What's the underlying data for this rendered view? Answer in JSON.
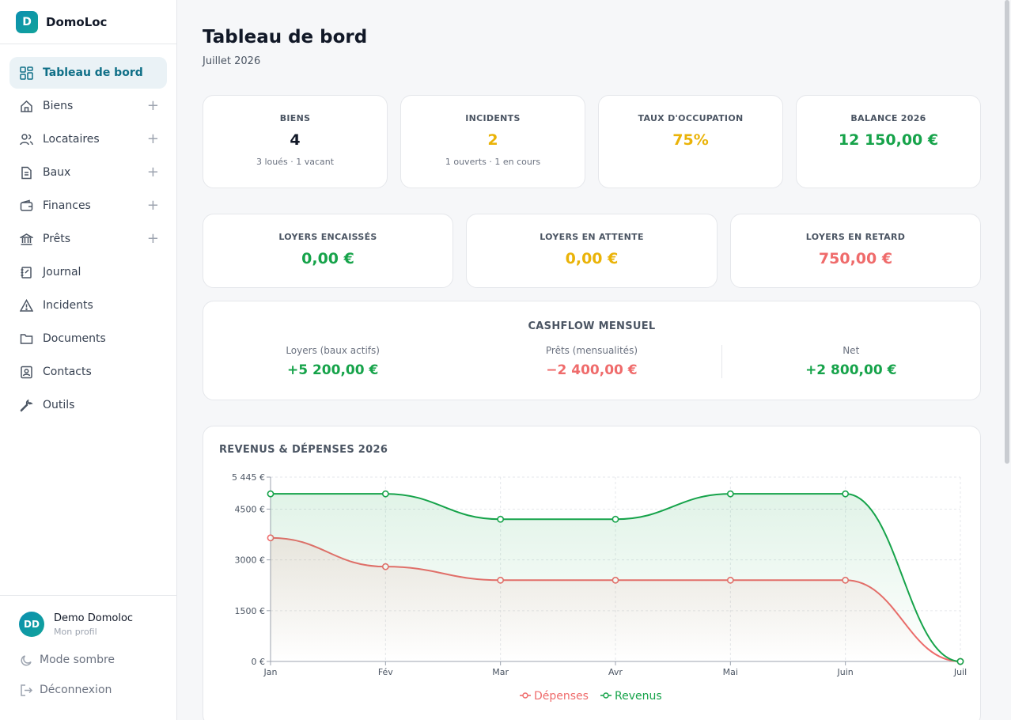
{
  "app": {
    "logo_letter": "D",
    "name": "DomoLoc"
  },
  "sidebar": {
    "items": [
      {
        "label": "Tableau de bord",
        "icon": "dashboard-icon"
      },
      {
        "label": "Biens",
        "icon": "home-icon"
      },
      {
        "label": "Locataires",
        "icon": "users-icon"
      },
      {
        "label": "Baux",
        "icon": "document-icon"
      },
      {
        "label": "Finances",
        "icon": "wallet-icon"
      },
      {
        "label": "Prêts",
        "icon": "bank-icon"
      },
      {
        "label": "Journal",
        "icon": "notebook-icon"
      },
      {
        "label": "Incidents",
        "icon": "warning-icon"
      },
      {
        "label": "Documents",
        "icon": "folder-icon"
      },
      {
        "label": "Contacts",
        "icon": "contact-icon"
      },
      {
        "label": "Outils",
        "icon": "wrench-icon"
      }
    ],
    "profile": {
      "initials": "DD",
      "name": "Demo Domoloc",
      "sub": "Mon profil"
    },
    "dark_mode_label": "Mode sombre",
    "logout_label": "Déconnexion"
  },
  "header": {
    "title": "Tableau de bord",
    "subtitle": "Juillet 2026"
  },
  "stats": [
    {
      "label": "BIENS",
      "value": "4",
      "sub": "3 loués · 1 vacant",
      "color": "#111827"
    },
    {
      "label": "INCIDENTS",
      "value": "2",
      "sub": "1 ouverts · 1 en cours",
      "color": "#eab308"
    },
    {
      "label": "TAUX D'OCCUPATION",
      "value": "75%",
      "sub": "",
      "color": "#eab308"
    },
    {
      "label": "BALANCE 2026",
      "value": "12 150,00 €",
      "sub": "",
      "color": "#16a34a"
    }
  ],
  "rents": [
    {
      "label": "LOYERS ENCAISSÉS",
      "value": "0,00 €",
      "color": "#16a34a"
    },
    {
      "label": "LOYERS EN ATTENTE",
      "value": "0,00 €",
      "color": "#eab308"
    },
    {
      "label": "LOYERS EN RETARD",
      "value": "750,00 €",
      "color": "#ef6b6b"
    }
  ],
  "cashflow": {
    "title": "CASHFLOW MENSUEL",
    "cols": [
      {
        "label": "Loyers (baux actifs)",
        "value": "+5 200,00 €",
        "color": "#16a34a"
      },
      {
        "label": "Prêts (mensualités)",
        "value": "−2 400,00 €",
        "color": "#ef6b6b"
      },
      {
        "label": "Net",
        "value": "+2 800,00 €",
        "color": "#16a34a"
      }
    ]
  },
  "chart_title": "REVENUS & DÉPENSES 2026",
  "chart_data": {
    "type": "area",
    "categories": [
      "Jan",
      "Fév",
      "Mar",
      "Avr",
      "Mai",
      "Juin",
      "Juil"
    ],
    "ylim": [
      0,
      5445
    ],
    "yticks": [
      0,
      1500,
      3000,
      4500,
      5445
    ],
    "ytick_labels": [
      "0 €",
      "1500 €",
      "3000 €",
      "4500 €",
      "5 445 €"
    ],
    "grid": true,
    "legend": "bottom",
    "series": [
      {
        "name": "Dépenses",
        "values": [
          3650,
          2800,
          2400,
          2400,
          2400,
          2400,
          0
        ],
        "color": "#ef6b6b"
      },
      {
        "name": "Revenus",
        "values": [
          4950,
          4950,
          4200,
          4200,
          4950,
          4950,
          0
        ],
        "color": "#16a34a"
      }
    ]
  }
}
